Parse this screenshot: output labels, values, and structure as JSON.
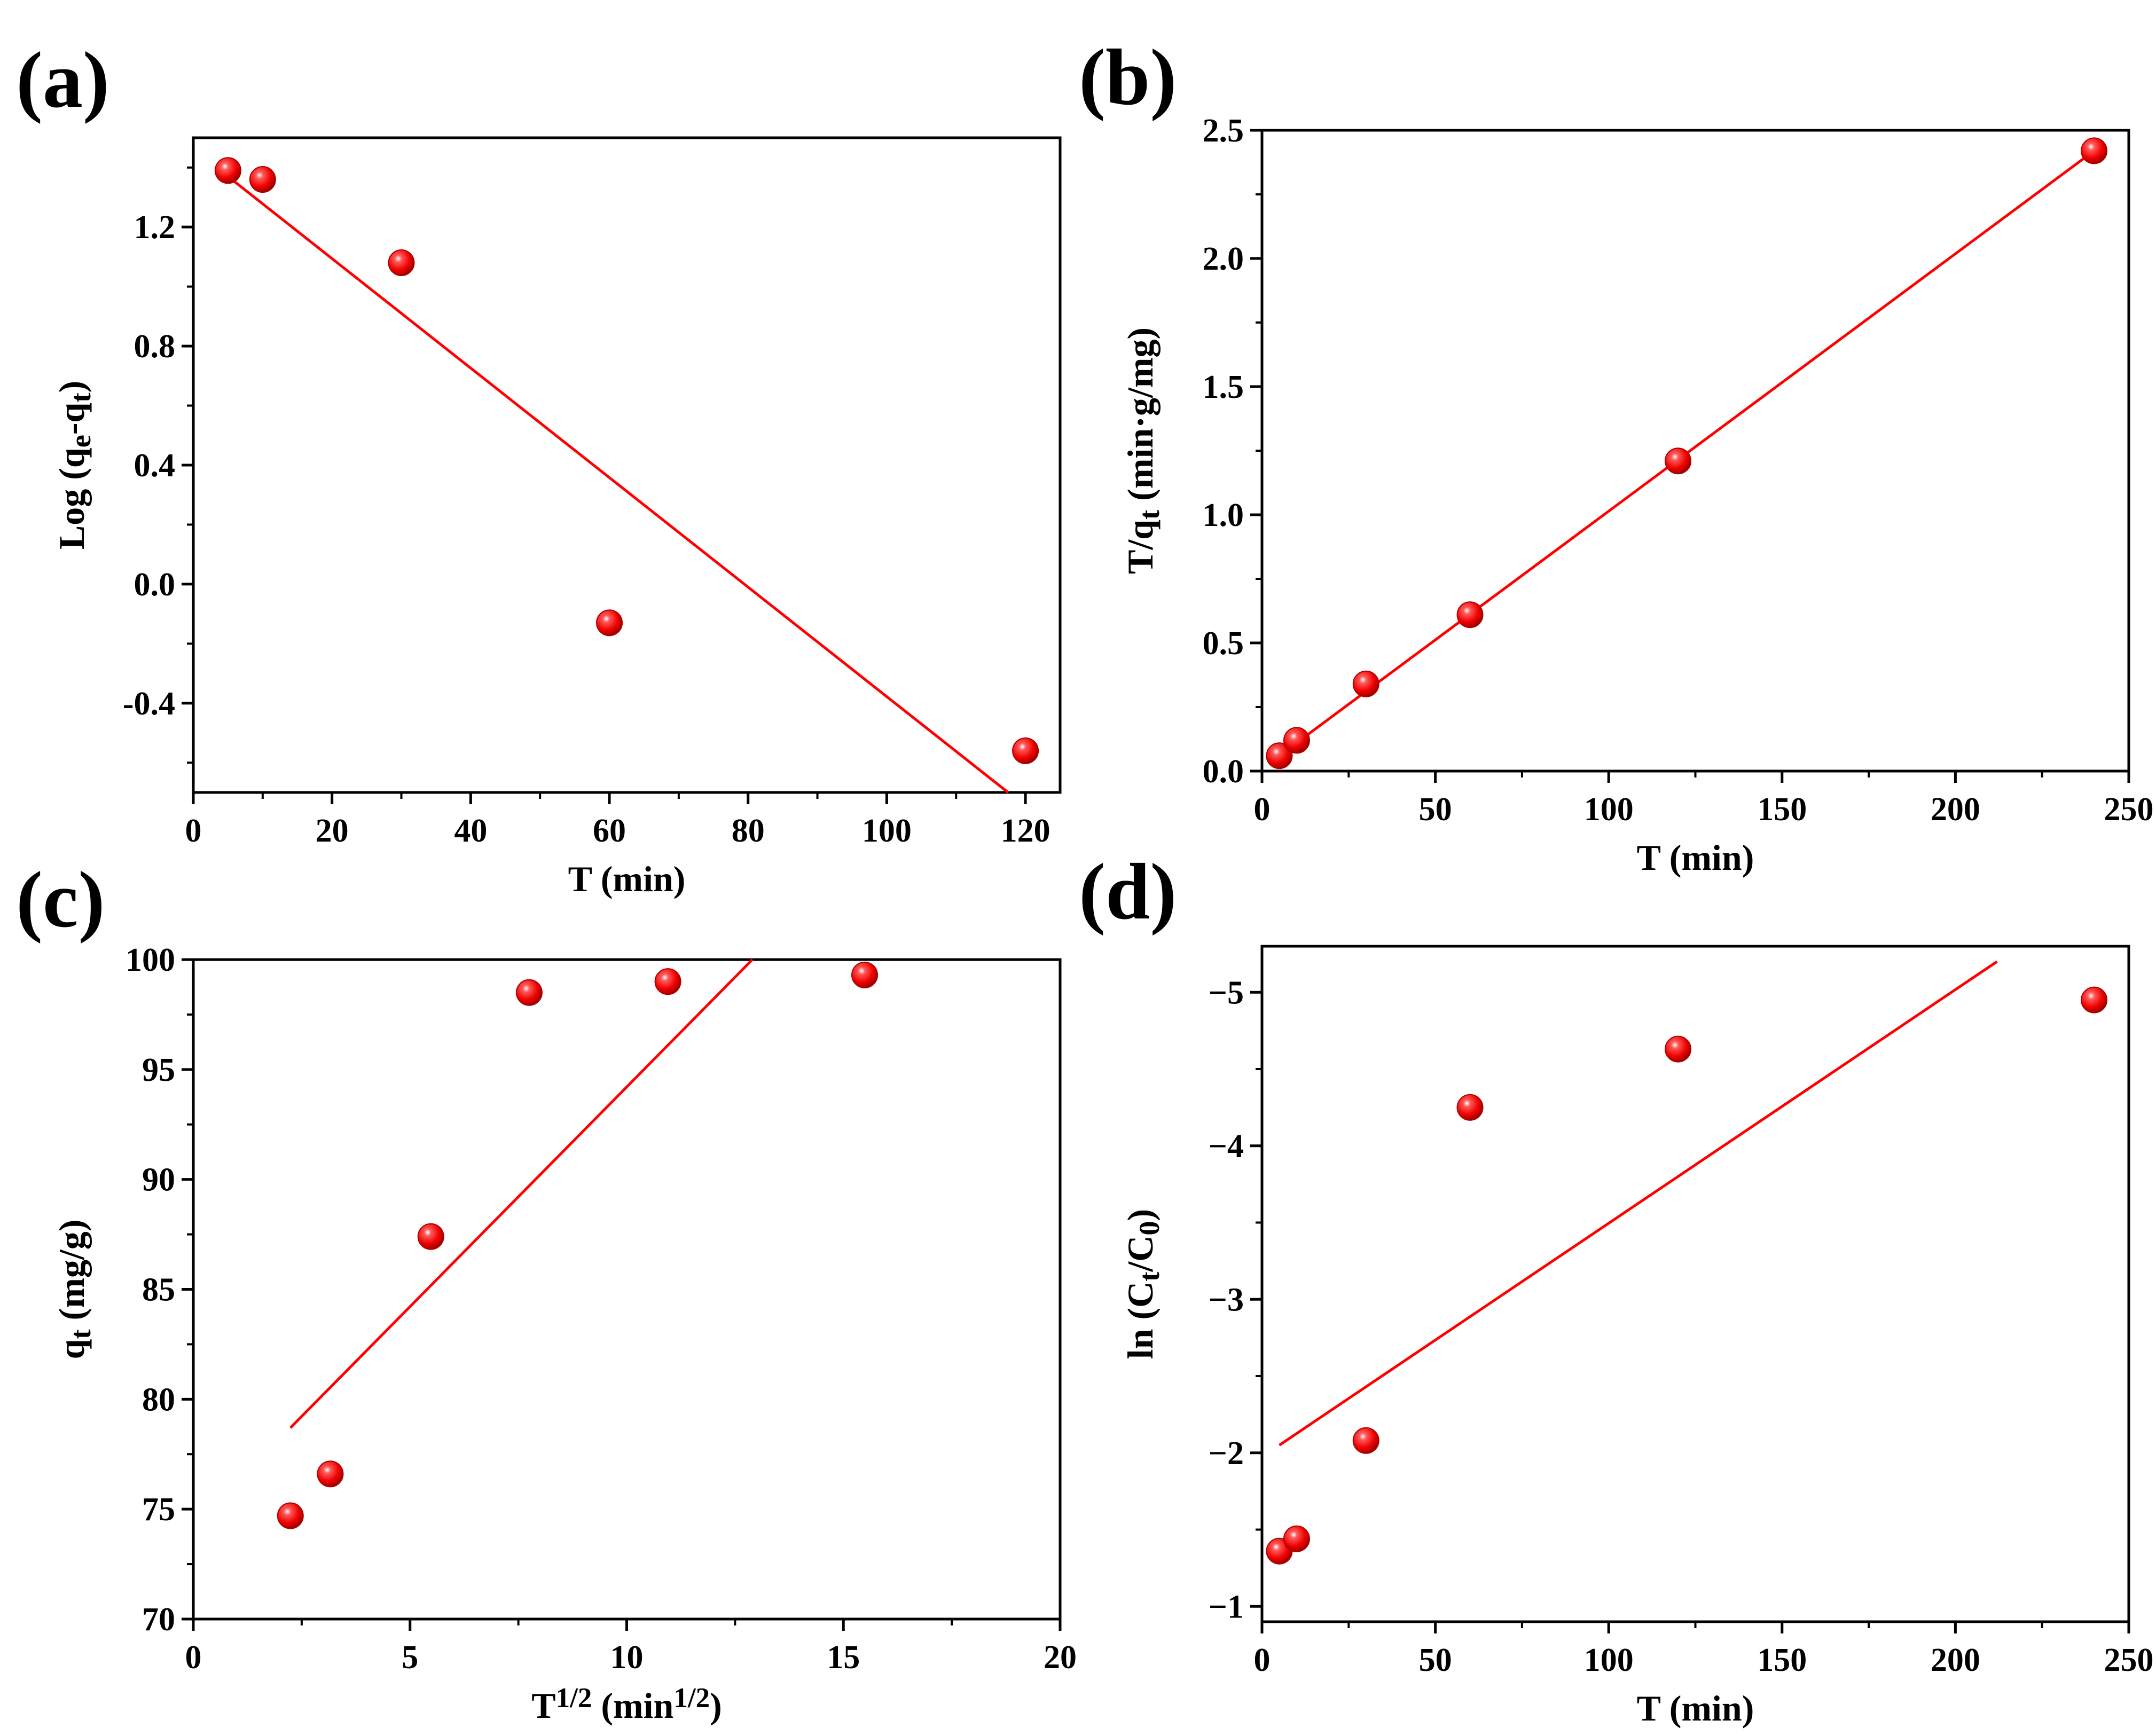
{
  "figure": {
    "colors": {
      "marker": "#ff0000",
      "fit_line": "#ff0000",
      "axes": "#000000",
      "background": "#ffffff"
    },
    "marker_style": "sphere"
  },
  "chart_data": [
    {
      "id": "a",
      "panel_label": "(a)",
      "type": "scatter",
      "xlabel": {
        "main": "T (min)"
      },
      "ylabel": {
        "parts": [
          {
            "text": "Log (q"
          },
          {
            "text": "e",
            "shift": "sub"
          },
          {
            "text": "-q"
          },
          {
            "text": "t",
            "shift": "sub"
          },
          {
            "text": ")"
          }
        ]
      },
      "xlim": [
        0,
        125
      ],
      "ylim": [
        -0.7,
        1.5
      ],
      "xticks": [
        0,
        20,
        40,
        60,
        80,
        100,
        120
      ],
      "xtick_labels": [
        "0",
        "20",
        "40",
        "60",
        "80",
        "100",
        "120"
      ],
      "yticks": [
        -0.4,
        0.0,
        0.4,
        0.8,
        1.2
      ],
      "ytick_labels": [
        "-0.4",
        "0.0",
        "0.4",
        "0.8",
        "1.2"
      ],
      "y_inverted": false,
      "x": [
        5,
        10,
        30,
        60,
        120
      ],
      "y": [
        1.39,
        1.36,
        1.08,
        -0.13,
        -0.56
      ],
      "fit_line": {
        "x": [
          5,
          117.5
        ],
        "y": [
          1.37,
          -0.7
        ]
      }
    },
    {
      "id": "b",
      "panel_label": "(b)",
      "type": "scatter",
      "xlabel": {
        "main": "T (min)"
      },
      "ylabel": {
        "parts": [
          {
            "text": "T/q"
          },
          {
            "text": "t",
            "shift": "sub"
          },
          {
            "text": " (min·g/mg)"
          }
        ]
      },
      "xlim": [
        0,
        250
      ],
      "ylim": [
        0,
        2.5
      ],
      "xticks": [
        0,
        50,
        100,
        150,
        200,
        250
      ],
      "xtick_labels": [
        "0",
        "50",
        "100",
        "150",
        "200",
        "250"
      ],
      "yticks": [
        0.0,
        0.5,
        1.0,
        1.5,
        2.0,
        2.5
      ],
      "ytick_labels": [
        "0.0",
        "0.5",
        "1.0",
        "1.5",
        "2.0",
        "2.5"
      ],
      "y_inverted": false,
      "x": [
        5,
        10,
        30,
        60,
        120,
        240
      ],
      "y": [
        0.06,
        0.12,
        0.34,
        0.61,
        1.21,
        2.42
      ],
      "fit_line": {
        "x": [
          5,
          240
        ],
        "y": [
          0.06,
          2.42
        ]
      }
    },
    {
      "id": "c",
      "panel_label": "(c)",
      "type": "scatter",
      "xlabel": {
        "parts": [
          {
            "text": "T"
          },
          {
            "text": "1/2",
            "shift": "super"
          },
          {
            "text": " (min"
          },
          {
            "text": "1/2",
            "shift": "super"
          },
          {
            "text": ")"
          }
        ]
      },
      "ylabel": {
        "parts": [
          {
            "text": "q"
          },
          {
            "text": "t",
            "shift": "sub"
          },
          {
            "text": " (mg/g)"
          }
        ]
      },
      "xlim": [
        0,
        20
      ],
      "ylim": [
        70,
        100
      ],
      "xticks": [
        0,
        5,
        10,
        15,
        20
      ],
      "xtick_labels": [
        "0",
        "5",
        "10",
        "15",
        "20"
      ],
      "yticks": [
        70,
        75,
        80,
        85,
        90,
        95,
        100
      ],
      "ytick_labels": [
        "70",
        "75",
        "80",
        "85",
        "90",
        "95",
        "100"
      ],
      "y_inverted": false,
      "x": [
        2.24,
        3.16,
        5.48,
        7.75,
        10.95,
        15.49
      ],
      "y": [
        74.7,
        76.6,
        87.4,
        98.5,
        99.0,
        99.3
      ],
      "fit_line": {
        "x": [
          2.24,
          12.9
        ],
        "y": [
          78.7,
          100
        ]
      }
    },
    {
      "id": "d",
      "panel_label": "(d)",
      "type": "scatter",
      "xlabel": {
        "main": "T (min)"
      },
      "ylabel": {
        "parts": [
          {
            "text": "ln (C"
          },
          {
            "text": "t",
            "shift": "sub"
          },
          {
            "text": "/C"
          },
          {
            "text": "0",
            "shift": "sub"
          },
          {
            "text": ")"
          }
        ]
      },
      "xlim": [
        0,
        250
      ],
      "ylim": [
        -0.9,
        -5.3
      ],
      "xticks": [
        0,
        50,
        100,
        150,
        200,
        250
      ],
      "xtick_labels": [
        "0",
        "50",
        "100",
        "150",
        "200",
        "250"
      ],
      "yticks": [
        -1,
        -2,
        -3,
        -4,
        -5
      ],
      "ytick_labels": [
        "−1",
        "−2",
        "−3",
        "−4",
        "−5"
      ],
      "y_inverted": true,
      "x": [
        5,
        10,
        30,
        60,
        120,
        240
      ],
      "y": [
        -1.36,
        -1.44,
        -2.08,
        -4.25,
        -4.63,
        -4.95
      ],
      "fit_line": {
        "x": [
          5,
          212
        ],
        "y": [
          -2.05,
          -5.2
        ]
      }
    }
  ]
}
